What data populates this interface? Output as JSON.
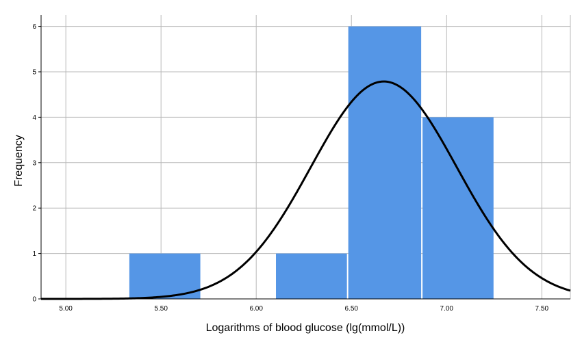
{
  "chart_data": {
    "type": "bar",
    "subtype": "histogram-with-normal-curve",
    "title": "",
    "xlabel": "Logarithms of blood glucose (lg(mmol/L))",
    "ylabel": "Frequency",
    "xlim": [
      4.87,
      7.65
    ],
    "ylim": [
      0,
      6.25
    ],
    "x_ticks": [
      5.0,
      5.5,
      6.0,
      6.5,
      7.0,
      7.5
    ],
    "x_tick_labels": [
      "5.00",
      "5.50",
      "6.00",
      "6.50",
      "7.00",
      "7.50"
    ],
    "y_ticks": [
      0,
      1,
      2,
      3,
      4,
      5,
      6
    ],
    "y_tick_labels": [
      "0",
      "1",
      "2",
      "3",
      "4",
      "5",
      "6"
    ],
    "bins": [
      {
        "x0": 5.33,
        "x1": 5.71,
        "count": 1
      },
      {
        "x0": 6.1,
        "x1": 6.48,
        "count": 1
      },
      {
        "x0": 6.48,
        "x1": 6.87,
        "count": 6
      },
      {
        "x0": 6.87,
        "x1": 7.25,
        "count": 4
      }
    ],
    "normal_curve": {
      "mean": 6.67,
      "sd": 0.383,
      "n": 12,
      "bin_width": 0.383
    },
    "grid": true,
    "colors": {
      "bar": "#5596e6",
      "curve": "#000000",
      "grid": "#b8b8b8"
    }
  }
}
